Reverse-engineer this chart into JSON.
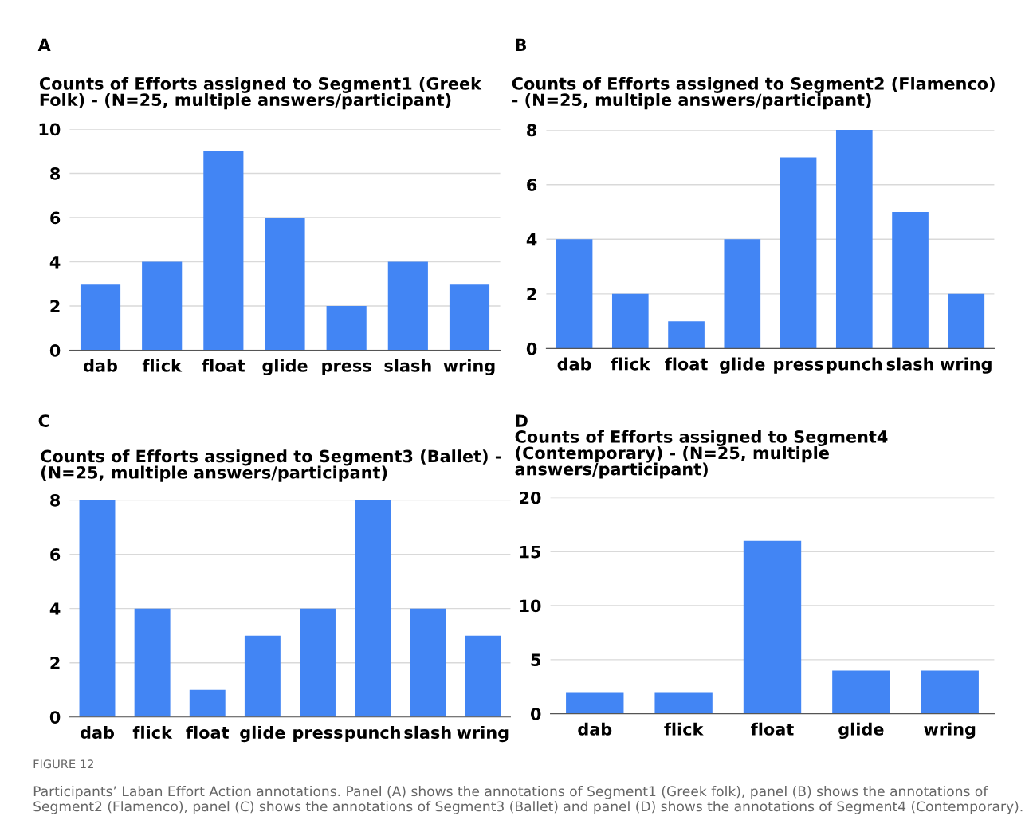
{
  "chart_data": [
    {
      "type": "bar",
      "title": "Counts of Efforts assigned to Segment1 (Greek Folk) - (N=25, multiple answers/participant)",
      "categories": [
        "dab",
        "flick",
        "float",
        "glide",
        "press",
        "slash",
        "wring"
      ],
      "values": [
        3,
        4,
        9,
        6,
        2,
        4,
        3
      ],
      "color": "#4285f4",
      "ylim": [
        0,
        10
      ],
      "yticks": [
        0,
        2,
        4,
        6,
        8,
        10
      ],
      "grid": "y",
      "annotations": [
        "A"
      ]
    },
    {
      "type": "bar",
      "title": "Counts of Efforts assigned to Segment2 (Flamenco) - (N=25, multiple answers/participant)",
      "categories": [
        "dab",
        "flick",
        "float",
        "glide",
        "press",
        "punch",
        "slash",
        "wring"
      ],
      "values": [
        4,
        2,
        1,
        4,
        7,
        8,
        5,
        2
      ],
      "color": "#4285f4",
      "ylim": [
        0,
        8
      ],
      "yticks": [
        0,
        2,
        4,
        6,
        8
      ],
      "grid": "y",
      "annotations": [
        "B"
      ]
    },
    {
      "type": "bar",
      "title": "Counts of Efforts assigned to Segment3 (Ballet) - (N=25, multiple answers/participant)",
      "categories": [
        "dab",
        "flick",
        "float",
        "glide",
        "press",
        "punch",
        "slash",
        "wring"
      ],
      "values": [
        8,
        4,
        1,
        3,
        4,
        8,
        4,
        3
      ],
      "color": "#4285f4",
      "ylim": [
        0,
        8
      ],
      "yticks": [
        0,
        2,
        4,
        6,
        8
      ],
      "grid": "y",
      "annotations": [
        "C"
      ]
    },
    {
      "type": "bar",
      "title": "Counts of Efforts assigned to Segment4 (Contemporary) - (N=25, multiple answers/participant)",
      "categories": [
        "dab",
        "flick",
        "float",
        "glide",
        "wring"
      ],
      "values": [
        2,
        2,
        16,
        4,
        4
      ],
      "color": "#4285f4",
      "ylim": [
        0,
        20
      ],
      "yticks": [
        0,
        5,
        10,
        15,
        20
      ],
      "grid": "y",
      "annotations": [
        "D",
        "FIGURE 12",
        "Participants’ Laban Effort Action annotations. Panel (A) shows the annotations of Segment1 (Greek folk), panel (B) shows the annotations of Segment2 (Flamenco), panel (C) shows the annotations of Segment3 (Ballet) and panel (D) shows the annotations of Segment4 (Contemporary)."
      ]
    }
  ]
}
